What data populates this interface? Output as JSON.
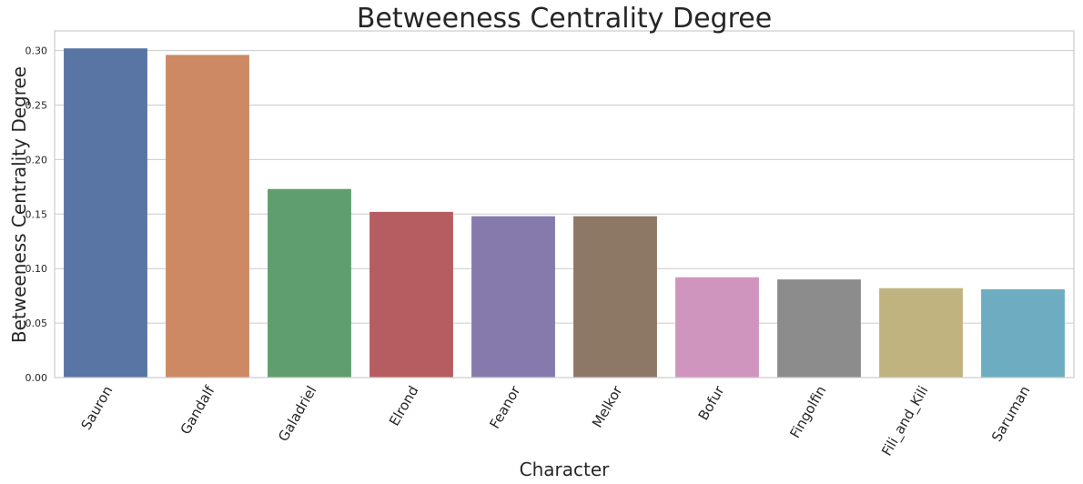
{
  "chart_data": {
    "type": "bar",
    "title": "Betweeness Centrality Degree",
    "xlabel": "Character",
    "ylabel": "Betweeness Centrality Degree",
    "categories": [
      "Sauron",
      "Gandalf",
      "Galadriel",
      "Elrond",
      "Feanor",
      "Melkor",
      "Bofur",
      "Fingolfin",
      "Fili_and_Kili",
      "Saruman"
    ],
    "values": [
      0.302,
      0.296,
      0.173,
      0.152,
      0.148,
      0.148,
      0.092,
      0.09,
      0.082,
      0.081
    ],
    "colors": [
      "#5875a4",
      "#cc8963",
      "#5f9e6e",
      "#b55d60",
      "#857aab",
      "#8d7866",
      "#d095bf",
      "#8c8c8c",
      "#c1b37f",
      "#6eadc1"
    ],
    "ylim": [
      0,
      0.318
    ],
    "yticks": [
      0.0,
      0.05,
      0.1,
      0.15,
      0.2,
      0.25,
      0.3
    ],
    "ytick_labels": [
      "0.00",
      "0.05",
      "0.10",
      "0.15",
      "0.20",
      "0.25",
      "0.30"
    ],
    "grid": "horizontal",
    "legend": "none"
  }
}
